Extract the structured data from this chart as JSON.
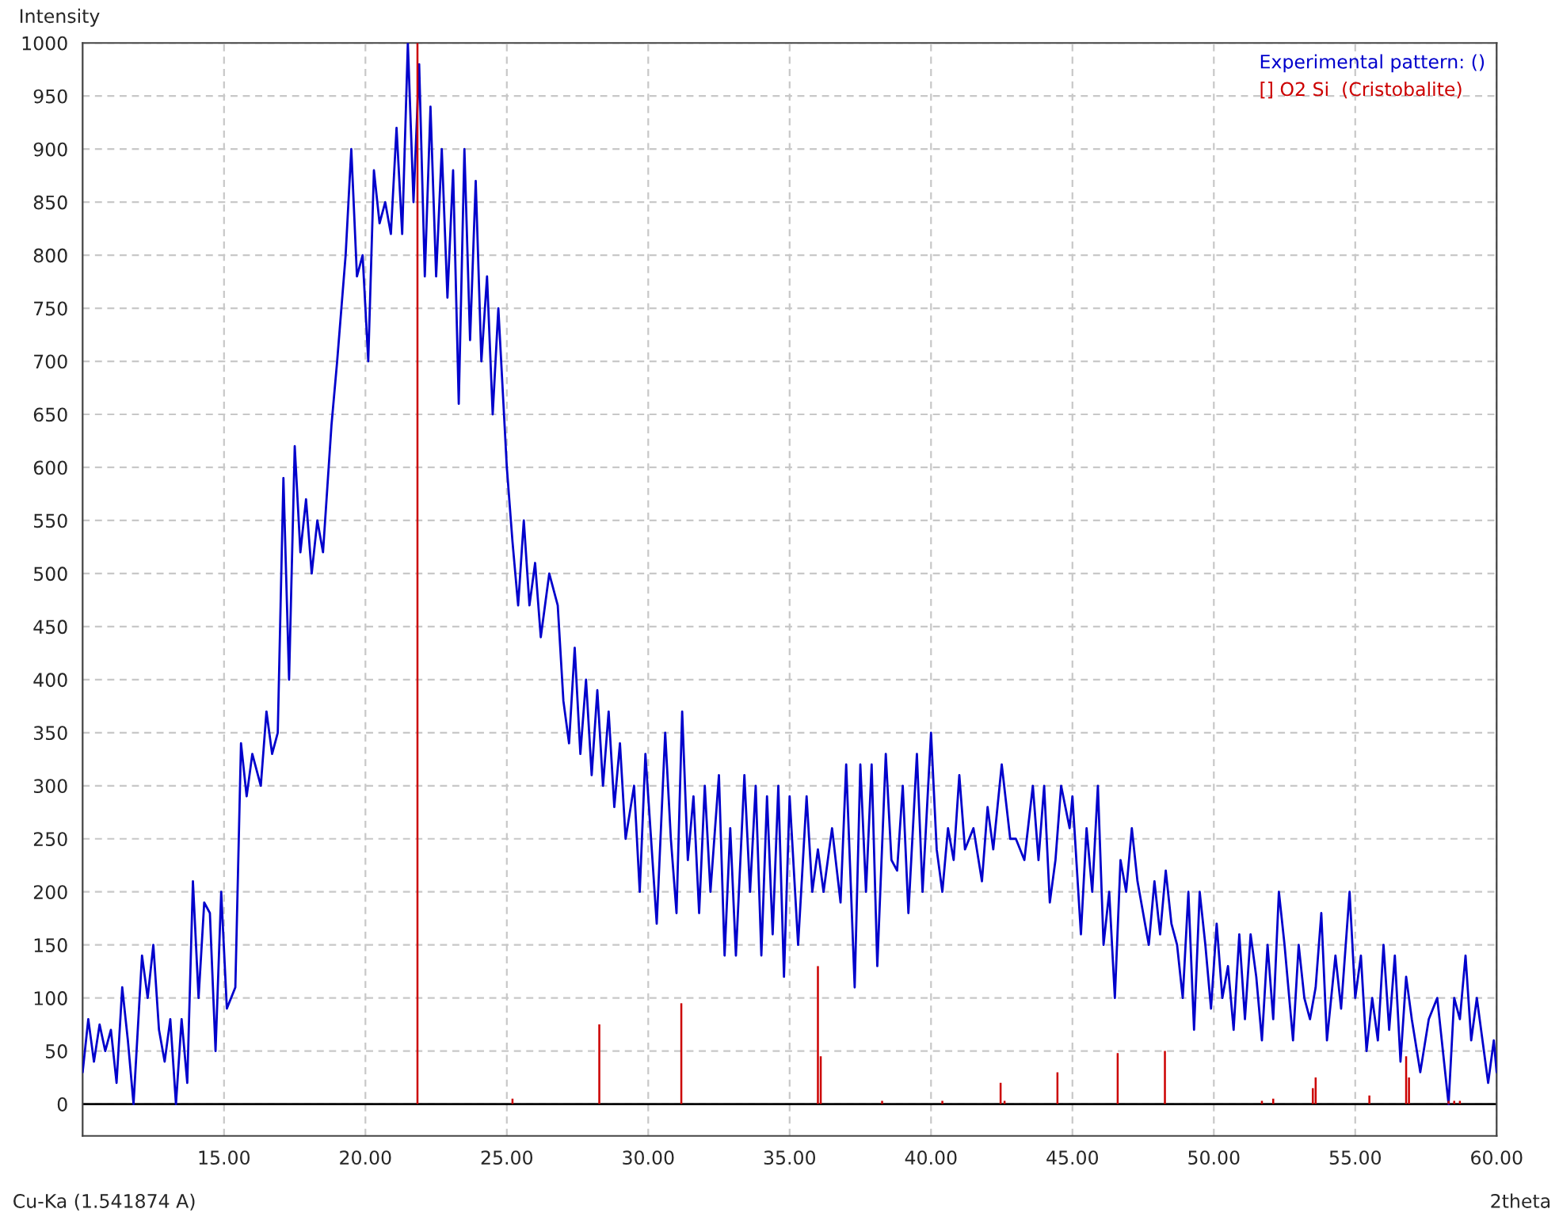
{
  "chart_data": {
    "type": "line",
    "xlabel": "2theta",
    "ylabel": "Intensity",
    "annotations": [
      "Cu-Ka (1.541874 A)"
    ],
    "xlim": [
      10,
      60
    ],
    "ylim": [
      -30,
      1000
    ],
    "xticks": [
      {
        "value": 15,
        "label": "15.00"
      },
      {
        "value": 20,
        "label": "20.00"
      },
      {
        "value": 25,
        "label": "25.00"
      },
      {
        "value": 30,
        "label": "30.00"
      },
      {
        "value": 35,
        "label": "35.00"
      },
      {
        "value": 40,
        "label": "40.00"
      },
      {
        "value": 45,
        "label": "45.00"
      },
      {
        "value": 50,
        "label": "50.00"
      },
      {
        "value": 55,
        "label": "55.00"
      },
      {
        "value": 60,
        "label": "60.00"
      }
    ],
    "yticks": [
      0,
      50,
      100,
      150,
      200,
      250,
      300,
      350,
      400,
      450,
      500,
      550,
      600,
      650,
      700,
      750,
      800,
      850,
      900,
      950,
      1000
    ],
    "grid": true,
    "legend": "top right",
    "series": [
      {
        "name": "Experimental pattern: ()",
        "color": "#0000cc",
        "x": [
          10.0,
          10.2,
          10.4,
          10.6,
          10.8,
          11.0,
          11.2,
          11.4,
          11.6,
          11.8,
          12.1,
          12.3,
          12.5,
          12.7,
          12.9,
          13.1,
          13.3,
          13.5,
          13.7,
          13.9,
          14.1,
          14.3,
          14.5,
          14.7,
          14.9,
          15.1,
          15.4,
          15.6,
          15.8,
          16.0,
          16.3,
          16.5,
          16.7,
          16.9,
          17.1,
          17.3,
          17.5,
          17.7,
          17.9,
          18.1,
          18.3,
          18.5,
          18.8,
          19.0,
          19.3,
          19.5,
          19.7,
          19.9,
          20.1,
          20.3,
          20.5,
          20.7,
          20.9,
          21.1,
          21.3,
          21.5,
          21.7,
          21.9,
          22.1,
          22.3,
          22.5,
          22.7,
          22.9,
          23.1,
          23.3,
          23.5,
          23.7,
          23.9,
          24.1,
          24.3,
          24.5,
          24.7,
          25.0,
          25.2,
          25.4,
          25.6,
          25.8,
          26.0,
          26.2,
          26.5,
          26.8,
          27.0,
          27.2,
          27.4,
          27.6,
          27.8,
          28.0,
          28.2,
          28.4,
          28.6,
          28.8,
          29.0,
          29.2,
          29.5,
          29.7,
          29.9,
          30.1,
          30.3,
          30.6,
          30.8,
          31.0,
          31.2,
          31.4,
          31.6,
          31.8,
          32.0,
          32.2,
          32.5,
          32.7,
          32.9,
          33.1,
          33.4,
          33.6,
          33.8,
          34.0,
          34.2,
          34.4,
          34.6,
          34.8,
          35.0,
          35.3,
          35.6,
          35.8,
          36.0,
          36.2,
          36.5,
          36.8,
          37.0,
          37.3,
          37.5,
          37.7,
          37.9,
          38.1,
          38.4,
          38.6,
          38.8,
          39.0,
          39.2,
          39.5,
          39.7,
          40.0,
          40.2,
          40.4,
          40.6,
          40.8,
          41.0,
          41.2,
          41.5,
          41.8,
          42.0,
          42.2,
          42.5,
          42.8,
          43.0,
          43.3,
          43.6,
          43.8,
          44.0,
          44.2,
          44.4,
          44.6,
          44.9,
          45.0,
          45.3,
          45.5,
          45.7,
          45.9,
          46.1,
          46.3,
          46.5,
          46.7,
          46.9,
          47.1,
          47.3,
          47.5,
          47.7,
          47.9,
          48.1,
          48.3,
          48.5,
          48.7,
          48.9,
          49.1,
          49.3,
          49.5,
          49.7,
          49.9,
          50.1,
          50.3,
          50.5,
          50.7,
          50.9,
          51.1,
          51.3,
          51.5,
          51.7,
          51.9,
          52.1,
          52.3,
          52.5,
          52.8,
          53.0,
          53.2,
          53.4,
          53.6,
          53.8,
          54.0,
          54.3,
          54.5,
          54.8,
          55.0,
          55.2,
          55.4,
          55.6,
          55.8,
          56.0,
          56.2,
          56.4,
          56.6,
          56.8,
          57.0,
          57.3,
          57.6,
          57.9,
          58.1,
          58.3,
          58.5,
          58.7,
          58.9,
          59.1,
          59.3,
          59.5,
          59.7,
          59.9,
          60.0
        ],
        "values": [
          30,
          80,
          40,
          75,
          50,
          70,
          20,
          110,
          60,
          0,
          140,
          100,
          150,
          70,
          40,
          80,
          0,
          80,
          20,
          210,
          100,
          190,
          180,
          50,
          200,
          90,
          110,
          340,
          290,
          330,
          300,
          370,
          330,
          350,
          590,
          400,
          620,
          520,
          570,
          500,
          550,
          520,
          640,
          700,
          800,
          900,
          780,
          800,
          700,
          880,
          830,
          850,
          820,
          920,
          820,
          1000,
          850,
          980,
          780,
          940,
          780,
          900,
          760,
          880,
          660,
          900,
          720,
          870,
          700,
          780,
          650,
          750,
          600,
          530,
          470,
          550,
          470,
          510,
          440,
          500,
          470,
          380,
          340,
          430,
          330,
          400,
          310,
          390,
          300,
          370,
          280,
          340,
          250,
          300,
          200,
          330,
          250,
          170,
          350,
          250,
          180,
          370,
          230,
          290,
          180,
          300,
          200,
          310,
          140,
          260,
          140,
          310,
          200,
          300,
          140,
          290,
          160,
          300,
          120,
          290,
          150,
          290,
          200,
          240,
          200,
          260,
          190,
          320,
          110,
          320,
          200,
          320,
          130,
          330,
          230,
          220,
          300,
          180,
          330,
          200,
          350,
          240,
          200,
          260,
          230,
          310,
          240,
          260,
          210,
          280,
          240,
          320,
          250,
          250,
          230,
          300,
          230,
          300,
          190,
          230,
          300,
          260,
          290,
          160,
          260,
          200,
          300,
          150,
          200,
          100,
          230,
          200,
          260,
          210,
          180,
          150,
          210,
          160,
          220,
          170,
          150,
          100,
          200,
          70,
          200,
          150,
          90,
          170,
          100,
          130,
          70,
          160,
          80,
          160,
          120,
          60,
          150,
          80,
          200,
          150,
          60,
          150,
          100,
          80,
          110,
          180,
          60,
          140,
          90,
          200,
          100,
          140,
          50,
          100,
          60,
          150,
          70,
          140,
          40,
          120,
          80,
          30,
          80,
          100,
          50,
          0,
          100,
          80,
          140,
          60,
          100,
          60,
          20,
          60,
          30
        ]
      },
      {
        "name": "[] O2 Si  (Cristobalite)",
        "type": "bar",
        "color": "#cc0000",
        "x": [
          21.84,
          25.2,
          28.27,
          31.17,
          36.0,
          36.1,
          38.27,
          40.4,
          42.46,
          42.6,
          44.47,
          46.6,
          48.27,
          51.7,
          52.1,
          53.5,
          53.6,
          55.5,
          56.8,
          56.9,
          58.3,
          58.5,
          58.7
        ],
        "values": [
          1000,
          5,
          75,
          95,
          130,
          45,
          3,
          3,
          20,
          3,
          30,
          48,
          50,
          3,
          5,
          15,
          25,
          8,
          45,
          25,
          3,
          3,
          3
        ]
      }
    ]
  }
}
